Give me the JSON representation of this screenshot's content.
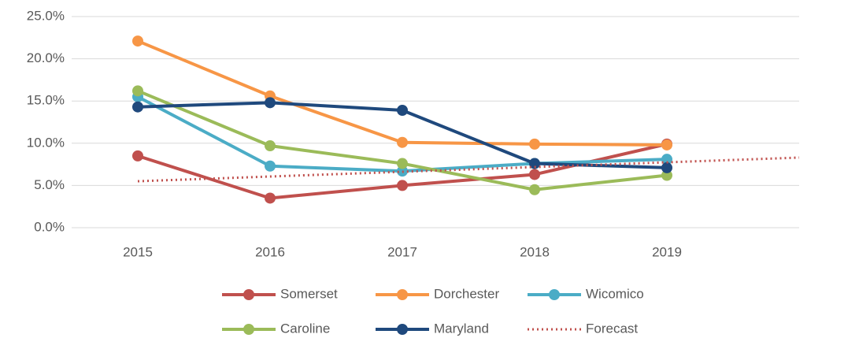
{
  "chart_data": {
    "type": "line",
    "categories": [
      "2015",
      "2016",
      "2017",
      "2018",
      "2019",
      null
    ],
    "series": [
      {
        "name": "Somerset",
        "color": "#c0504d",
        "values": [
          8.5,
          3.5,
          5.0,
          6.3,
          9.9,
          null
        ]
      },
      {
        "name": "Dorchester",
        "color": "#f79646",
        "values": [
          22.1,
          15.6,
          10.1,
          9.9,
          9.8,
          null
        ]
      },
      {
        "name": "Wicomico",
        "color": "#4bacc6",
        "values": [
          15.5,
          7.3,
          6.7,
          7.6,
          8.1,
          null
        ]
      },
      {
        "name": "Caroline",
        "color": "#9bbb59",
        "values": [
          16.2,
          9.7,
          7.6,
          4.5,
          6.2,
          null
        ]
      },
      {
        "name": "Maryland",
        "color": "#1f497d",
        "values": [
          14.3,
          14.8,
          13.9,
          7.6,
          7.1,
          null
        ]
      },
      {
        "name": "Forecast",
        "color": "#c0504d",
        "style": "dotted",
        "values": [
          5.5,
          6.06,
          6.62,
          7.18,
          7.74,
          8.3
        ]
      }
    ],
    "ylim": [
      0,
      25
    ],
    "yticks": [
      {
        "value": 0,
        "label": "0.0%"
      },
      {
        "value": 5,
        "label": "5.0%"
      },
      {
        "value": 10,
        "label": "10.0%"
      },
      {
        "value": 15,
        "label": "15.0%"
      },
      {
        "value": 20,
        "label": "20.0%"
      },
      {
        "value": 25,
        "label": "25.0%"
      }
    ],
    "grid": true,
    "legend": "bottom"
  }
}
